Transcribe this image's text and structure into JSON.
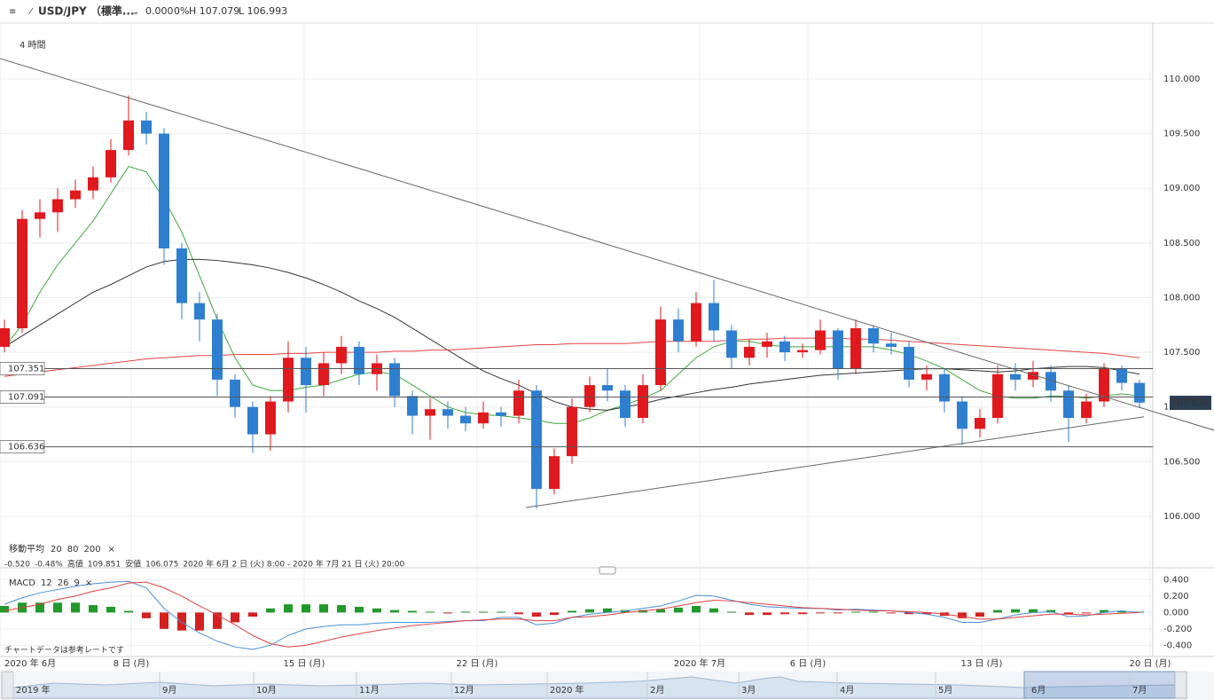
{
  "header": {
    "symbol": "USD/JPY （標準...",
    "quote": [
      "0.000",
      "0%",
      "H 107.079",
      "L 106.993"
    ]
  },
  "chart_data": [
    {
      "type": "candlestick",
      "timeframe": "4 時間",
      "up_color": "#e0191e",
      "down_color": "#2f7fd0",
      "candles": {
        "open": [
          107.55,
          107.72,
          108.72,
          108.78,
          108.9,
          108.98,
          109.1,
          109.35,
          109.62,
          109.5,
          108.45,
          107.95,
          107.8,
          107.25,
          107.0,
          106.75,
          107.05,
          107.45,
          107.2,
          107.4,
          107.55,
          107.3,
          107.4,
          107.1,
          106.92,
          106.98,
          106.92,
          106.85,
          106.95,
          106.92,
          107.15,
          106.25,
          106.55,
          107.0,
          107.2,
          107.15,
          106.9,
          107.2,
          107.8,
          107.6,
          107.95,
          107.7,
          107.45,
          107.55,
          107.6,
          107.5,
          107.52,
          107.7,
          107.35,
          107.72,
          107.58,
          107.55,
          107.25,
          107.3,
          107.05,
          106.8,
          106.9,
          107.3,
          107.25,
          107.32,
          107.15,
          106.9,
          107.05,
          107.35,
          107.22
        ],
        "high": [
          107.8,
          108.8,
          108.9,
          109.0,
          109.08,
          109.2,
          109.45,
          109.85,
          109.7,
          109.55,
          108.5,
          108.05,
          107.85,
          107.3,
          107.05,
          107.1,
          107.6,
          107.55,
          107.5,
          107.65,
          107.6,
          107.48,
          107.45,
          107.15,
          107.08,
          107.05,
          107.0,
          107.05,
          107.0,
          107.25,
          107.2,
          106.62,
          107.08,
          107.28,
          107.35,
          107.2,
          107.3,
          107.92,
          107.9,
          108.05,
          108.16,
          107.75,
          107.62,
          107.68,
          107.65,
          107.58,
          107.8,
          107.72,
          107.8,
          107.75,
          107.68,
          107.6,
          107.38,
          107.35,
          107.1,
          106.98,
          107.38,
          107.4,
          107.42,
          107.38,
          107.2,
          107.12,
          107.4,
          107.38,
          107.25
        ],
        "low": [
          107.5,
          107.68,
          108.55,
          108.6,
          108.82,
          108.9,
          109.05,
          109.3,
          109.4,
          108.3,
          107.8,
          107.6,
          107.1,
          106.9,
          106.58,
          106.6,
          106.95,
          106.95,
          107.1,
          107.3,
          107.2,
          107.15,
          107.0,
          106.75,
          106.7,
          106.8,
          106.78,
          106.8,
          106.82,
          106.85,
          106.07,
          106.2,
          106.48,
          106.95,
          107.05,
          106.82,
          106.85,
          107.15,
          107.5,
          107.55,
          107.6,
          107.35,
          107.38,
          107.45,
          107.42,
          107.45,
          107.48,
          107.25,
          107.3,
          107.5,
          107.48,
          107.18,
          107.15,
          106.95,
          106.65,
          106.72,
          106.85,
          107.15,
          107.18,
          107.05,
          106.68,
          106.85,
          107.0,
          107.15,
          106.99
        ],
        "close": [
          107.72,
          108.72,
          108.78,
          108.9,
          108.98,
          109.1,
          109.35,
          109.62,
          109.5,
          108.45,
          107.95,
          107.8,
          107.25,
          107.0,
          106.75,
          107.05,
          107.45,
          107.2,
          107.4,
          107.55,
          107.3,
          107.4,
          107.1,
          106.92,
          106.98,
          106.92,
          106.85,
          106.95,
          106.92,
          107.15,
          106.25,
          106.55,
          107.0,
          107.2,
          107.15,
          106.9,
          107.2,
          107.8,
          107.6,
          107.95,
          107.7,
          107.45,
          107.55,
          107.6,
          107.5,
          107.52,
          107.7,
          107.35,
          107.72,
          107.58,
          107.55,
          107.25,
          107.3,
          107.05,
          106.8,
          106.9,
          107.3,
          107.25,
          107.32,
          107.15,
          106.9,
          107.05,
          107.35,
          107.22,
          107.04
        ]
      },
      "xlim": [
        -0.25,
        64.75
      ],
      "xticks": [
        {
          "value": -0.25,
          "label": "2020 年 6月"
        },
        {
          "value": 7.15,
          "label": "8 日 (月)"
        },
        {
          "value": 16.9,
          "label": "15 日 (月)"
        },
        {
          "value": 26.65,
          "label": "22 日 (月)"
        },
        {
          "value": 39.2,
          "label": "2020 年 7月"
        },
        {
          "value": 45.3,
          "label": "6 日 (月)"
        },
        {
          "value": 55.1,
          "label": "13 日 (月)"
        },
        {
          "value": 64.6,
          "label": "20 日 (月)"
        }
      ],
      "ylim": [
        105.529,
        110.511
      ],
      "yticks": [
        {
          "value": 106,
          "label": "106.000"
        },
        {
          "value": 106.5,
          "label": "106.500"
        },
        {
          "value": 107,
          "label": "107.000"
        },
        {
          "value": 107.5,
          "label": "107.500"
        },
        {
          "value": 108,
          "label": "108.000"
        },
        {
          "value": 108.5,
          "label": "108.500"
        },
        {
          "value": 109,
          "label": "109.000"
        },
        {
          "value": 109.5,
          "label": "109.500"
        },
        {
          "value": 110,
          "label": "110.000"
        }
      ],
      "grid": true,
      "moving_averages": {
        "title": "移動平均",
        "series": [
          {
            "name": "20",
            "color": "#3fa83f",
            "values": [
              107.55,
              107.75,
              108.05,
              108.3,
              108.5,
              108.7,
              108.95,
              109.2,
              109.15,
              108.9,
              108.6,
              108.2,
              107.8,
              107.45,
              107.2,
              107.15,
              107.15,
              107.18,
              107.2,
              107.25,
              107.3,
              107.32,
              107.3,
              107.2,
              107.1,
              107.0,
              106.95,
              106.93,
              106.92,
              106.9,
              106.88,
              106.85,
              106.85,
              106.9,
              106.97,
              107.02,
              107.08,
              107.15,
              107.3,
              107.45,
              107.55,
              107.6,
              107.6,
              107.57,
              107.55,
              107.55,
              107.55,
              107.55,
              107.55,
              107.55,
              107.52,
              107.48,
              107.42,
              107.35,
              107.25,
              107.15,
              107.1,
              107.08,
              107.08,
              107.1,
              107.1,
              107.08,
              107.1,
              107.12,
              107.1
            ]
          },
          {
            "name": "80",
            "color": "#333333",
            "values": [
              107.55,
              107.65,
              107.75,
              107.85,
              107.95,
              108.05,
              108.12,
              108.2,
              108.28,
              108.33,
              108.35,
              108.35,
              108.34,
              108.32,
              108.3,
              108.27,
              108.23,
              108.18,
              108.12,
              108.05,
              107.97,
              107.9,
              107.82,
              107.72,
              107.62,
              107.52,
              107.42,
              107.33,
              107.26,
              107.2,
              107.12,
              107.05,
              107.0,
              106.98,
              106.97,
              107.0,
              107.03,
              107.07,
              107.1,
              107.13,
              107.16,
              107.18,
              107.21,
              107.23,
              107.25,
              107.27,
              107.29,
              107.3,
              107.31,
              107.32,
              107.33,
              107.34,
              107.35,
              107.35,
              107.34,
              107.33,
              107.32,
              107.33,
              107.35,
              107.36,
              107.37,
              107.37,
              107.36,
              107.33,
              107.3
            ]
          },
          {
            "name": "200",
            "color": "#e64545",
            "values": [
              107.28,
              107.3,
              107.32,
              107.34,
              107.36,
              107.38,
              107.4,
              107.42,
              107.44,
              107.45,
              107.46,
              107.47,
              107.47,
              107.48,
              107.48,
              107.48,
              107.49,
              107.49,
              107.5,
              107.5,
              107.5,
              107.5,
              107.51,
              107.51,
              107.52,
              107.52,
              107.53,
              107.54,
              107.55,
              107.56,
              107.57,
              107.57,
              107.58,
              107.58,
              107.58,
              107.58,
              107.59,
              107.6,
              107.6,
              107.6,
              107.6,
              107.61,
              107.62,
              107.62,
              107.63,
              107.63,
              107.63,
              107.63,
              107.62,
              107.62,
              107.61,
              107.6,
              107.59,
              107.58,
              107.57,
              107.56,
              107.55,
              107.54,
              107.53,
              107.52,
              107.51,
              107.5,
              107.49,
              107.47,
              107.45
            ]
          }
        ]
      },
      "trendlines": [
        {
          "x": [
            -0.25,
            68.2
          ],
          "y": [
            110.187,
            106.787
          ]
        },
        {
          "x": [
            29.4,
            64.25
          ],
          "y": [
            106.08,
            106.91
          ]
        }
      ],
      "levels": [
        107.351,
        107.091,
        106.636
      ],
      "last_price": 107.038,
      "stats": {
        "change": "-0.520",
        "change_pct": "-0.48%",
        "high_label": "高値",
        "high": 109.851,
        "low_label": "安値",
        "low": 106.075,
        "range": "2020 年 6月 2 日 (火) 8:00 - 2020 年 7月 21 日 (火) 20:00"
      }
    },
    {
      "type": "macd",
      "title": "MACD",
      "params": [
        12,
        26,
        9
      ],
      "macd_line": {
        "color": "#4a90d9",
        "values": [
          0.1,
          0.18,
          0.24,
          0.28,
          0.32,
          0.35,
          0.37,
          0.38,
          0.3,
          0.05,
          -0.12,
          -0.25,
          -0.35,
          -0.42,
          -0.45,
          -0.4,
          -0.28,
          -0.2,
          -0.17,
          -0.15,
          -0.15,
          -0.13,
          -0.12,
          -0.12,
          -0.12,
          -0.11,
          -0.1,
          -0.1,
          -0.06,
          -0.06,
          -0.15,
          -0.13,
          -0.06,
          -0.02,
          0.0,
          0.02,
          0.05,
          0.08,
          0.14,
          0.21,
          0.2,
          0.15,
          0.1,
          0.07,
          0.06,
          0.05,
          0.05,
          0.03,
          0.04,
          0.03,
          0.02,
          0.0,
          -0.02,
          -0.06,
          -0.12,
          -0.12,
          -0.08,
          -0.03,
          0.0,
          0.01,
          -0.05,
          -0.04,
          0.0,
          0.02,
          0.0
        ]
      },
      "signal_line": {
        "color": "#e04040",
        "values": [
          0.02,
          0.06,
          0.1,
          0.16,
          0.2,
          0.26,
          0.3,
          0.36,
          0.37,
          0.3,
          0.2,
          0.08,
          -0.03,
          -0.15,
          -0.28,
          -0.38,
          -0.42,
          -0.4,
          -0.35,
          -0.3,
          -0.26,
          -0.22,
          -0.19,
          -0.16,
          -0.14,
          -0.12,
          -0.1,
          -0.09,
          -0.08,
          -0.08,
          -0.1,
          -0.1,
          -0.06,
          -0.05,
          -0.03,
          0.0,
          0.02,
          0.04,
          0.08,
          0.12,
          0.15,
          0.14,
          0.12,
          0.1,
          0.08,
          0.06,
          0.05,
          0.04,
          0.03,
          0.02,
          0.02,
          0.01,
          0.0,
          -0.02,
          -0.05,
          -0.08,
          -0.08,
          -0.06,
          -0.04,
          -0.02,
          -0.02,
          -0.03,
          -0.02,
          -0.01,
          0.0
        ]
      },
      "histogram": {
        "up_color": "#22992a",
        "down_color": "#d42020",
        "values": [
          0.08,
          0.12,
          0.12,
          0.12,
          0.12,
          0.09,
          0.07,
          0.02,
          -0.07,
          -0.2,
          -0.22,
          -0.22,
          -0.2,
          -0.12,
          -0.05,
          0.05,
          0.1,
          0.1,
          0.1,
          0.09,
          0.07,
          0.05,
          0.03,
          0.02,
          0.01,
          -0.01,
          0.01,
          0.01,
          0.01,
          -0.02,
          -0.05,
          -0.03,
          0.02,
          0.04,
          0.05,
          0.03,
          0.03,
          0.04,
          0.06,
          0.08,
          0.05,
          0.01,
          -0.03,
          -0.03,
          -0.02,
          -0.02,
          -0.01,
          -0.01,
          0.01,
          0.01,
          -0.01,
          -0.02,
          -0.02,
          -0.04,
          -0.07,
          -0.05,
          0.03,
          0.04,
          0.04,
          0.03,
          -0.02,
          -0.01,
          0.03,
          0.02,
          0.01
        ]
      },
      "ylim": [
        -0.537,
        0.491
      ],
      "yticks": [
        {
          "value": 0.4,
          "label": "0.400"
        },
        {
          "value": 0.2,
          "label": "0.200"
        },
        {
          "value": 0,
          "label": "0.000"
        },
        {
          "value": -0.2,
          "label": "-0.200"
        },
        {
          "value": -0.4,
          "label": "-0.400"
        }
      ],
      "note": "チャートデータは参考レートです"
    }
  ],
  "navigator": {
    "labels": [
      "2019 年",
      "9月",
      "10月",
      "11月",
      "12月",
      "2020 年",
      "2月",
      "3月",
      "4月",
      "5月",
      "6月",
      "7月"
    ]
  }
}
